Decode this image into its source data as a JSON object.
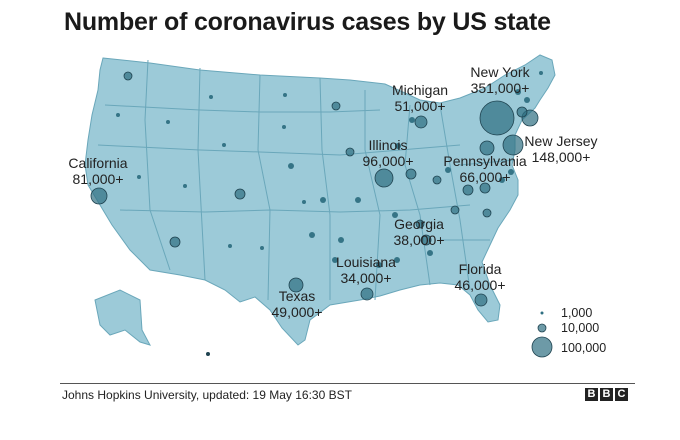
{
  "title": "Number of coronavirus cases by US state",
  "source": "Johns Hopkins University, updated: 19 May 16:30 BST",
  "brand": [
    "B",
    "B",
    "C"
  ],
  "colors": {
    "land": "#9ccad8",
    "border": "#6aa7ba",
    "bubble": "#2f6f82",
    "bubble_stroke": "#1f4350"
  },
  "labels": [
    {
      "name": "New York",
      "value": "351,000+"
    },
    {
      "name": "Michigan",
      "value": "51,000+"
    },
    {
      "name": "New Jersey",
      "value": "148,000+"
    },
    {
      "name": "Illinois",
      "value": "96,000+"
    },
    {
      "name": "Pennsylvania",
      "value": "66,000+"
    },
    {
      "name": "California",
      "value": "81,000+"
    },
    {
      "name": "Georgia",
      "value": "38,000+"
    },
    {
      "name": "Louisiana",
      "value": "34,000+"
    },
    {
      "name": "Florida",
      "value": "46,000+"
    },
    {
      "name": "Texas",
      "value": "49,000+"
    }
  ],
  "legend": [
    "1,000",
    "10,000",
    "100,000"
  ]
}
